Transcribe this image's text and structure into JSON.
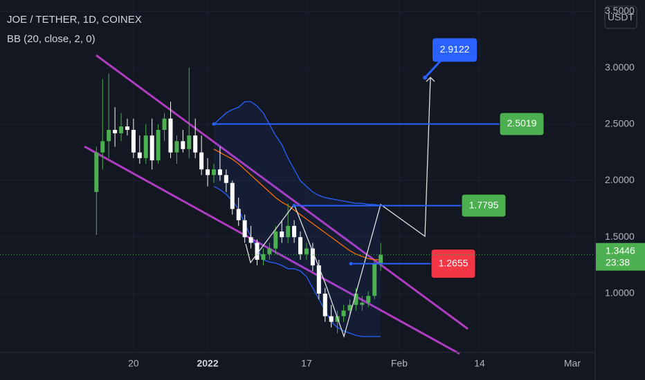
{
  "chart_data": {
    "type": "candlestick",
    "title": "JOE / TETHER, 1D, COINEX",
    "indicator": "BB (20, close, 2, 0)",
    "currency": "USDT",
    "countdown": "23:38",
    "up_color": "#4caf50",
    "down_color": "#ffffff",
    "open": [
      1.9,
      2.25,
      2.35,
      2.45,
      2.42,
      2.48,
      2.45,
      2.25,
      2.2,
      2.4,
      2.18,
      2.45,
      2.55,
      2.25,
      2.35,
      2.28,
      2.4,
      2.25,
      2.1,
      2.05,
      2.1,
      2.05,
      1.98,
      1.75,
      1.65,
      1.5,
      1.45,
      1.3,
      1.35,
      1.4,
      1.55,
      1.5,
      1.6,
      1.5,
      1.35,
      1.4,
      1.25,
      1.0,
      0.8,
      0.75,
      0.8,
      0.85,
      0.9,
      0.9,
      0.92,
      0.98,
      1.27
    ],
    "high": [
      2.3,
      2.9,
      2.95,
      2.65,
      2.6,
      2.55,
      2.55,
      2.4,
      2.5,
      2.55,
      2.5,
      2.6,
      2.7,
      2.4,
      2.45,
      3.0,
      2.55,
      2.4,
      2.2,
      2.15,
      2.3,
      2.1,
      2.0,
      1.85,
      1.7,
      1.6,
      1.48,
      1.4,
      1.45,
      1.6,
      1.65,
      1.8,
      1.65,
      1.55,
      1.45,
      1.45,
      1.3,
      1.05,
      0.9,
      0.85,
      0.9,
      0.95,
      1.05,
      0.98,
      1.02,
      1.3,
      1.45
    ],
    "low": [
      1.52,
      2.1,
      2.2,
      2.3,
      2.35,
      2.4,
      2.2,
      2.15,
      2.15,
      2.1,
      2.15,
      2.35,
      2.2,
      2.15,
      2.25,
      2.2,
      2.2,
      2.05,
      1.95,
      1.98,
      2.0,
      1.9,
      1.7,
      1.6,
      1.45,
      1.4,
      1.25,
      1.25,
      1.3,
      1.35,
      1.45,
      1.45,
      1.45,
      1.3,
      1.3,
      1.2,
      0.95,
      0.75,
      0.7,
      0.65,
      0.75,
      0.8,
      0.85,
      0.85,
      0.88,
      0.95,
      1.2
    ],
    "close": [
      2.25,
      2.35,
      2.45,
      2.42,
      2.48,
      2.45,
      2.25,
      2.2,
      2.4,
      2.18,
      2.45,
      2.55,
      2.25,
      2.35,
      2.28,
      2.4,
      2.25,
      2.1,
      2.05,
      2.1,
      2.05,
      1.98,
      1.75,
      1.65,
      1.5,
      1.45,
      1.3,
      1.35,
      1.4,
      1.55,
      1.5,
      1.6,
      1.5,
      1.35,
      1.4,
      1.25,
      1.0,
      0.8,
      0.75,
      0.8,
      0.85,
      0.9,
      1.0,
      0.92,
      0.98,
      1.27,
      1.3446
    ],
    "bands": {
      "start": 19,
      "upper_color": "#2962ff",
      "basis_color": "#ff6d00",
      "upper": [
        2.5,
        2.55,
        2.6,
        2.63,
        2.65,
        2.7,
        2.7,
        2.66,
        2.6,
        2.5,
        2.4,
        2.32,
        2.2,
        2.1,
        2.0,
        1.95,
        1.9,
        1.87,
        1.85,
        1.84,
        1.83,
        1.82,
        1.81,
        1.8,
        1.8,
        1.79,
        1.79,
        1.78
      ],
      "basis": [
        2.28,
        2.25,
        2.22,
        2.19,
        2.15,
        2.1,
        2.05,
        2.0,
        1.95,
        1.9,
        1.85,
        1.81,
        1.78,
        1.74,
        1.7,
        1.66,
        1.62,
        1.58,
        1.54,
        1.5,
        1.46,
        1.42,
        1.38,
        1.35,
        1.33,
        1.31,
        1.3,
        1.3
      ],
      "lower": [
        1.95,
        1.92,
        1.88,
        1.82,
        1.75,
        1.62,
        1.5,
        1.4,
        1.3,
        1.28,
        1.27,
        1.25,
        1.22,
        1.22,
        1.2,
        1.15,
        1.05,
        0.95,
        0.85,
        0.75,
        0.7,
        0.67,
        0.65,
        0.63,
        0.62,
        0.62,
        0.62,
        0.62
      ]
    },
    "levels": [
      {
        "value": 2.5019,
        "color": "#4caf50"
      },
      {
        "value": 1.7795,
        "color": "#4caf50"
      },
      {
        "value": 1.2655,
        "color": "#f23645"
      }
    ],
    "target": {
      "value": 2.9122,
      "color": "#2962ff"
    },
    "xlim": [
      -15.6,
      80.7
    ],
    "xticks": [
      {
        "value": 6,
        "label": "20"
      },
      {
        "value": 18,
        "label": "2022"
      },
      {
        "value": 34,
        "label": "17"
      },
      {
        "value": 49,
        "label": "Feb"
      },
      {
        "value": 62,
        "label": "14"
      },
      {
        "value": 77,
        "label": "Mar"
      }
    ],
    "ylim": [
      0.48,
      3.6
    ],
    "yticks": [
      {
        "value": 1,
        "label": "1.0000"
      },
      {
        "value": 1.5,
        "label": "1.5000"
      },
      {
        "value": 2,
        "label": "2.0000"
      },
      {
        "value": 2.5,
        "label": "2.5000"
      },
      {
        "value": 3,
        "label": "3.0000"
      },
      {
        "value": 3.5,
        "label": "3.5000"
      }
    ],
    "grid": true
  }
}
